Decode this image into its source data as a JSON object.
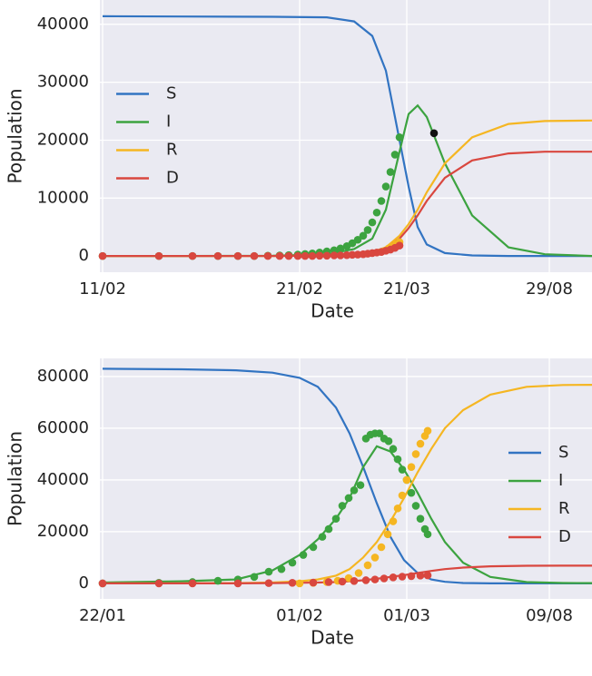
{
  "chart_data": [
    {
      "type": "line",
      "xlabel": "Date",
      "ylabel": "Population",
      "xlim": [
        0,
        542
      ],
      "xticks": [
        {
          "value": 3,
          "label": "11/02"
        },
        {
          "value": 220,
          "label": "21/02"
        },
        {
          "value": 338,
          "label": "21/03"
        },
        {
          "value": 495,
          "label": "29/08"
        }
      ],
      "ylim": [
        -2800,
        44200
      ],
      "yticks": [
        0,
        10000,
        20000,
        30000,
        40000
      ],
      "grid": true,
      "legend": "center left",
      "x": [
        3,
        90,
        190,
        250,
        280,
        300,
        315,
        330,
        340,
        350,
        360,
        380,
        410,
        450,
        490,
        542
      ],
      "series": [
        {
          "name": "S",
          "color": "#3274c2",
          "values": [
            41400,
            41350,
            41300,
            41200,
            40500,
            38000,
            32000,
            20000,
            12000,
            5000,
            2000,
            500,
            100,
            0,
            0,
            0
          ]
        },
        {
          "name": "I",
          "color": "#3ca340",
          "values": [
            0,
            0,
            50,
            300,
            1200,
            3000,
            8000,
            18000,
            24500,
            26000,
            24000,
            16000,
            7000,
            1500,
            300,
            0
          ]
        },
        {
          "name": "R",
          "color": "#f5b622",
          "values": [
            0,
            0,
            0,
            100,
            300,
            700,
            1500,
            3500,
            5500,
            8000,
            11000,
            16000,
            20500,
            22800,
            23300,
            23400
          ]
        },
        {
          "name": "D",
          "color": "#d9473f",
          "values": [
            0,
            0,
            0,
            80,
            250,
            600,
            1300,
            3000,
            4800,
            7000,
            9500,
            13500,
            16500,
            17700,
            18000,
            18000
          ]
        }
      ],
      "points": [
        {
          "color": "#3ca340",
          "x": [
            3,
            65,
            102,
            130,
            152,
            170,
            185,
            198,
            208,
            218,
            226,
            234,
            242,
            250,
            258,
            265,
            272,
            278,
            284,
            290,
            295,
            300,
            305,
            310,
            315,
            320,
            325,
            330
          ],
          "values": [
            0,
            0,
            0,
            0,
            0,
            0,
            50,
            100,
            150,
            250,
            350,
            450,
            600,
            800,
            1000,
            1300,
            1700,
            2200,
            2800,
            3500,
            4500,
            5800,
            7500,
            9500,
            12000,
            14500,
            17500,
            20500
          ]
        },
        {
          "color": "#f5b622",
          "x": [
            318,
            322,
            326,
            330
          ],
          "values": [
            1300,
            1600,
            2000,
            2400
          ]
        },
        {
          "color": "#d9473f",
          "x": [
            3,
            65,
            102,
            130,
            152,
            170,
            185,
            198,
            208,
            218,
            226,
            234,
            242,
            250,
            258,
            265,
            272,
            278,
            284,
            290,
            295,
            300,
            305,
            310,
            315,
            320,
            325,
            330
          ],
          "values": [
            0,
            0,
            0,
            0,
            0,
            0,
            0,
            0,
            0,
            0,
            0,
            0,
            50,
            50,
            100,
            100,
            150,
            200,
            250,
            300,
            400,
            500,
            600,
            700,
            900,
            1100,
            1400,
            1800
          ]
        },
        {
          "color": "#111111",
          "x": [
            368
          ],
          "values": [
            21200
          ]
        }
      ]
    },
    {
      "type": "line",
      "xlabel": "Date",
      "ylabel": "Population",
      "xlim": [
        0,
        542
      ],
      "xticks": [
        {
          "value": 3,
          "label": "22/01"
        },
        {
          "value": 220,
          "label": "01/02"
        },
        {
          "value": 338,
          "label": "01/03"
        },
        {
          "value": 495,
          "label": "09/08"
        }
      ],
      "ylim": [
        -6000,
        87000
      ],
      "yticks": [
        0,
        20000,
        40000,
        60000,
        80000
      ],
      "grid": true,
      "legend": "center right",
      "x": [
        3,
        90,
        150,
        190,
        220,
        240,
        260,
        275,
        290,
        305,
        320,
        335,
        350,
        365,
        380,
        400,
        430,
        470,
        510,
        542
      ],
      "series": [
        {
          "name": "S",
          "color": "#3274c2",
          "values": [
            83000,
            82800,
            82400,
            81500,
            79500,
            76000,
            68000,
            58000,
            45000,
            31000,
            18000,
            9000,
            4000,
            1500,
            600,
            150,
            0,
            0,
            0,
            0
          ]
        },
        {
          "name": "I",
          "color": "#3ca340",
          "values": [
            300,
            800,
            1500,
            5000,
            11000,
            17000,
            25000,
            33000,
            45000,
            53000,
            51000,
            44000,
            35000,
            25000,
            16000,
            8000,
            2500,
            500,
            150,
            100
          ]
        },
        {
          "name": "R",
          "color": "#f5b622",
          "values": [
            0,
            0,
            100,
            300,
            800,
            1500,
            3000,
            5500,
            10000,
            16000,
            24000,
            33000,
            43000,
            52000,
            60000,
            67000,
            73000,
            76000,
            76700,
            76800
          ]
        },
        {
          "name": "D",
          "color": "#d9473f",
          "values": [
            0,
            0,
            0,
            100,
            200,
            300,
            500,
            800,
            1200,
            1800,
            2500,
            3200,
            4000,
            4800,
            5500,
            6100,
            6600,
            6800,
            6850,
            6850
          ]
        }
      ],
      "points": [
        {
          "color": "#3ca340",
          "x": [
            3,
            65,
            102,
            130,
            152,
            170,
            186,
            200,
            212,
            224,
            235,
            245,
            252,
            260,
            267,
            274,
            280,
            287,
            293,
            298,
            303,
            308,
            313,
            318,
            323,
            328,
            333,
            338,
            343,
            348,
            353,
            358,
            361
          ],
          "values": [
            0,
            200,
            500,
            1000,
            1500,
            2500,
            4500,
            5500,
            8000,
            11000,
            14000,
            18000,
            21000,
            25000,
            30000,
            33000,
            36000,
            38000,
            56000,
            57500,
            58000,
            58000,
            56000,
            55000,
            52000,
            48000,
            44000,
            40000,
            35000,
            30000,
            25000,
            21000,
            19000
          ]
        },
        {
          "color": "#f5b622",
          "x": [
            220,
            235,
            250,
            262,
            274,
            285,
            295,
            303,
            310,
            317,
            323,
            328,
            333,
            338,
            343,
            348,
            353,
            358,
            361
          ],
          "values": [
            0,
            200,
            500,
            1000,
            2000,
            4000,
            7000,
            10000,
            14000,
            19000,
            24000,
            29000,
            34000,
            40000,
            45000,
            50000,
            54000,
            57000,
            59000
          ]
        },
        {
          "color": "#d9473f",
          "x": [
            3,
            65,
            102,
            152,
            186,
            212,
            235,
            252,
            267,
            280,
            293,
            303,
            313,
            323,
            333,
            343,
            353,
            361
          ],
          "values": [
            0,
            0,
            0,
            0,
            100,
            200,
            300,
            500,
            700,
            900,
            1200,
            1500,
            1900,
            2300,
            2600,
            2800,
            3000,
            3100
          ]
        }
      ]
    }
  ]
}
